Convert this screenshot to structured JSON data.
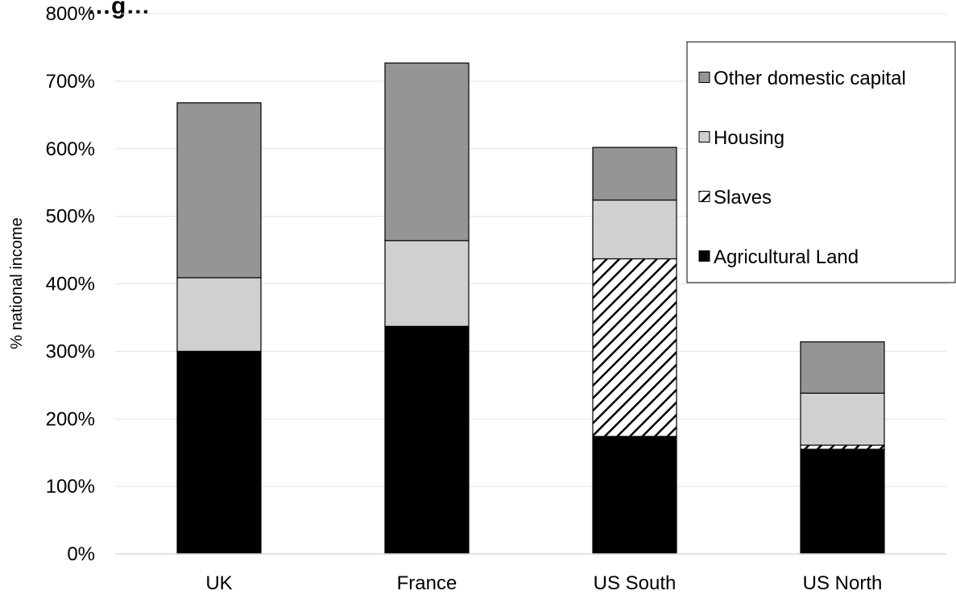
{
  "chart_data": {
    "type": "bar",
    "stacked": true,
    "title": "…g…",
    "xlabel": "",
    "ylabel": "% national income",
    "ylim": [
      0,
      800
    ],
    "yticks": [
      "0%",
      "100%",
      "200%",
      "300%",
      "400%",
      "500%",
      "600%",
      "700%",
      "800%"
    ],
    "categories": [
      "UK",
      "France",
      "US South",
      "US North"
    ],
    "series": [
      {
        "name": "Agricultural Land",
        "values": [
          300,
          337,
          174,
          155
        ],
        "color": "#000000",
        "pattern": "solid"
      },
      {
        "name": "Slaves",
        "values": [
          0,
          0,
          263,
          6
        ],
        "color": "#000000",
        "pattern": "diagonal-hatch"
      },
      {
        "name": "Housing",
        "values": [
          109,
          127,
          87,
          77
        ],
        "color": "#d0d0d0",
        "pattern": "solid"
      },
      {
        "name": "Other domestic capital",
        "values": [
          259,
          263,
          78,
          76
        ],
        "color": "#959595",
        "pattern": "solid"
      }
    ],
    "legend_order": [
      "Other domestic capital",
      "Housing",
      "Slaves",
      "Agricultural Land"
    ],
    "legend_position": "top-right",
    "grid": true
  }
}
